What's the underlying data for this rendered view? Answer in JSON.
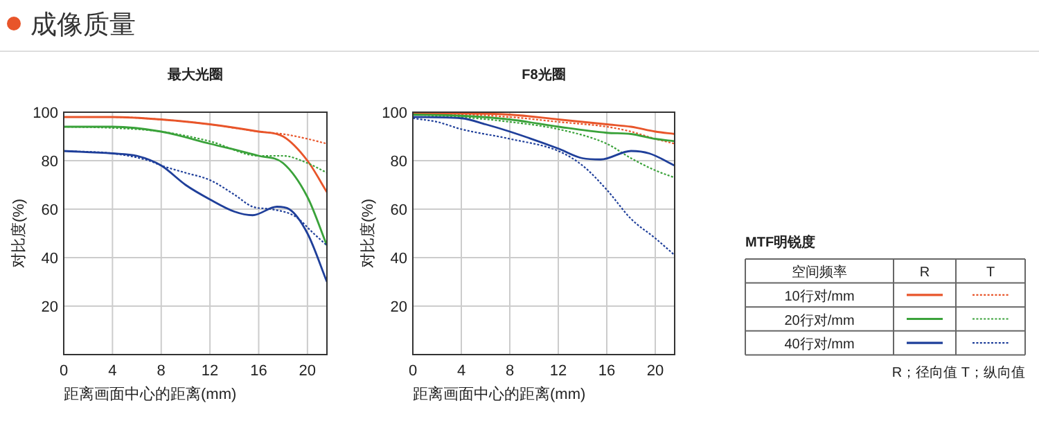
{
  "chart_data": [
    {
      "type": "line",
      "title": "最大光圈",
      "xlabel": "距离画面中心的距离(mm)",
      "ylabel": "对比度(%)",
      "annotations": [
        "成像质量"
      ],
      "xlim": [
        0,
        21.6
      ],
      "ylim": [
        0,
        100
      ],
      "xticks": [
        0,
        4,
        8,
        12,
        16,
        20
      ],
      "yticks": [
        20,
        40,
        60,
        80,
        100
      ],
      "grid": true,
      "legend": false,
      "series": [
        {
          "color": "#e8552a",
          "line_style": "solid",
          "x": [
            0,
            4,
            8,
            12,
            16,
            18,
            20,
            21.6
          ],
          "values": [
            98,
            98,
            97,
            95,
            92,
            90,
            80,
            67
          ]
        },
        {
          "color": "#e8552a",
          "line_style": "dotted",
          "x": [
            0,
            4,
            8,
            12,
            16,
            18,
            20,
            21.6
          ],
          "values": [
            98,
            98,
            97,
            95,
            92,
            91,
            89,
            87
          ]
        },
        {
          "color": "#3aa23a",
          "line_style": "solid",
          "x": [
            0,
            4,
            8,
            12,
            16,
            18,
            20,
            21.6
          ],
          "values": [
            94,
            94,
            92,
            87,
            82,
            79,
            65,
            45
          ]
        },
        {
          "color": "#3aa23a",
          "line_style": "dotted",
          "x": [
            0,
            4,
            8,
            12,
            16,
            18,
            20,
            21.6
          ],
          "values": [
            94,
            93.5,
            92,
            88,
            82,
            82,
            79,
            75
          ]
        },
        {
          "color": "#1f3f9a",
          "line_style": "solid",
          "x": [
            0,
            4,
            6,
            8,
            10,
            12,
            14,
            15.5,
            17.5,
            18.5,
            20,
            21.6
          ],
          "values": [
            84,
            83,
            82,
            78,
            70,
            64,
            59,
            57.5,
            61,
            60,
            50,
            30
          ]
        },
        {
          "color": "#1f3f9a",
          "line_style": "dotted",
          "x": [
            0,
            4,
            7,
            8,
            10,
            12,
            14,
            15.5,
            17,
            19,
            20.5,
            21.6
          ],
          "values": [
            84,
            83,
            80,
            78,
            75,
            72,
            66,
            61,
            60,
            57,
            50,
            45
          ]
        }
      ]
    },
    {
      "type": "line",
      "title": "F8光圈",
      "xlabel": "距离画面中心的距离(mm)",
      "ylabel": "对比度(%)",
      "legend_title": "MTF明锐度",
      "annotations": [
        "空间频率",
        "R",
        "T",
        "R；径向值 T；纵向值"
      ],
      "xlim": [
        0,
        21.6
      ],
      "ylim": [
        0,
        100
      ],
      "xticks": [
        0,
        4,
        8,
        12,
        16,
        20
      ],
      "yticks": [
        20,
        40,
        60,
        80,
        100
      ],
      "grid": true,
      "legend": "right",
      "series": [
        {
          "name": "10行对/mm",
          "color": "#e8552a",
          "line_style": "solid",
          "x": [
            0,
            4,
            8,
            12,
            16,
            18,
            20,
            21.6
          ],
          "values": [
            99.5,
            99.5,
            99,
            97,
            95,
            94,
            92,
            91
          ]
        },
        {
          "color": "#e8552a",
          "line_style": "dotted",
          "x": [
            0,
            4,
            8,
            12,
            16,
            18,
            20,
            21.6
          ],
          "values": [
            99,
            99,
            98,
            96,
            94,
            92,
            89,
            87
          ]
        },
        {
          "name": "20行对/mm",
          "color": "#3aa23a",
          "line_style": "solid",
          "x": [
            0,
            4,
            8,
            12,
            16,
            18,
            20,
            21.6
          ],
          "values": [
            99,
            98.5,
            97,
            94,
            91.5,
            91,
            89,
            88
          ]
        },
        {
          "color": "#3aa23a",
          "line_style": "dotted",
          "x": [
            0,
            4,
            8,
            12,
            16,
            18,
            20,
            21.6
          ],
          "values": [
            99,
            98,
            96,
            93,
            87,
            81,
            76,
            73
          ]
        },
        {
          "name": "40行对/mm",
          "color": "#1f3f9a",
          "line_style": "solid",
          "x": [
            0,
            4,
            6,
            8,
            12,
            14,
            15.5,
            18,
            19.5,
            21.6
          ],
          "values": [
            98,
            97.5,
            95,
            92,
            85,
            81,
            80.5,
            84,
            83,
            78
          ]
        },
        {
          "color": "#1f3f9a",
          "line_style": "dotted",
          "x": [
            0,
            2,
            4,
            8,
            12,
            14,
            16,
            18,
            20,
            21.6
          ],
          "values": [
            97.5,
            96,
            93,
            89,
            84,
            78,
            68,
            56,
            48,
            41
          ]
        }
      ]
    }
  ]
}
